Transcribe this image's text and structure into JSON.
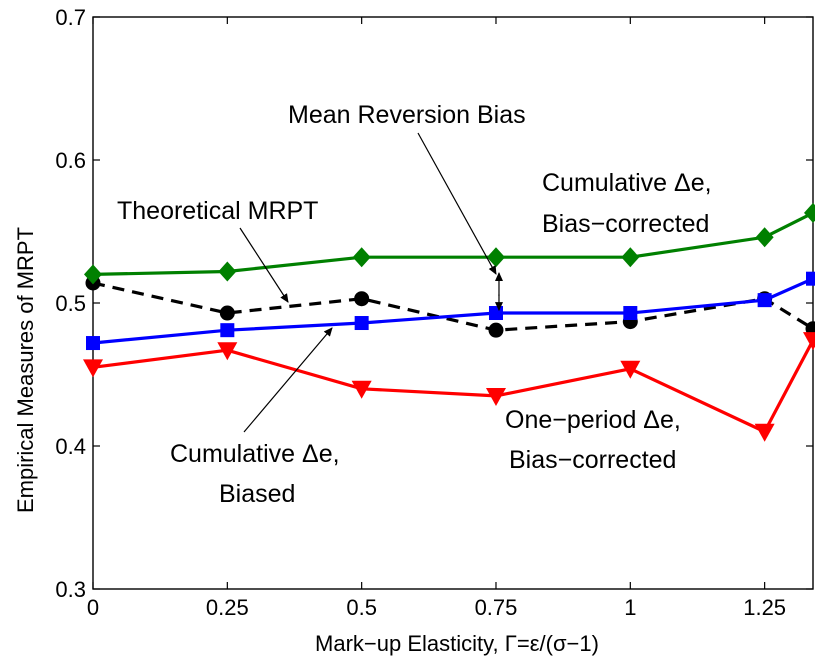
{
  "chart_data": {
    "type": "line",
    "xlabel": "Mark−up Elasticity, Γ=ε/(σ−1)",
    "ylabel": "Empirical Measures of MRPT",
    "xlim": [
      0,
      1.34
    ],
    "ylim": [
      0.3,
      0.7
    ],
    "x_ticks": [
      0,
      0.25,
      0.5,
      0.75,
      1,
      1.25
    ],
    "x_tick_labels": [
      "0",
      "0.25",
      "0.5",
      "0.75",
      "1",
      "1.25"
    ],
    "y_ticks": [
      0.3,
      0.4,
      0.5,
      0.6,
      0.7
    ],
    "y_tick_labels": [
      "0.3",
      "0.4",
      "0.5",
      "0.6",
      "0.7"
    ],
    "grid": false,
    "legend": "none",
    "x": [
      0,
      0.25,
      0.5,
      0.75,
      1,
      1.25,
      1.34
    ],
    "series": [
      {
        "key": "theoretical",
        "color": "#000000",
        "dash": true,
        "marker": "circle",
        "values": [
          0.514,
          0.493,
          0.503,
          0.481,
          0.487,
          0.503,
          0.482
        ]
      },
      {
        "key": "cum_biased",
        "color": "#0000ff",
        "dash": false,
        "marker": "square",
        "values": [
          0.472,
          0.481,
          0.486,
          0.493,
          0.493,
          0.502,
          0.517
        ]
      },
      {
        "key": "cum_corrected",
        "color": "#008000",
        "dash": false,
        "marker": "diamond",
        "values": [
          0.52,
          0.522,
          0.532,
          0.532,
          0.532,
          0.546,
          0.563
        ]
      },
      {
        "key": "one_period",
        "color": "#ff0000",
        "dash": false,
        "marker": "triangle-down",
        "values": [
          0.455,
          0.467,
          0.44,
          0.435,
          0.454,
          0.41,
          0.474
        ]
      }
    ],
    "annotations": {
      "mean_reversion": "Mean Reversion Bias",
      "cum_corrected_1": "Cumulative Δe,",
      "cum_corrected_2": "Bias−corrected",
      "theoretical": "Theoretical MRPT",
      "cum_biased_1": "Cumulative Δe,",
      "cum_biased_2": "Biased",
      "one_period_1": "One−period Δe,",
      "one_period_2": "Bias−corrected"
    }
  }
}
